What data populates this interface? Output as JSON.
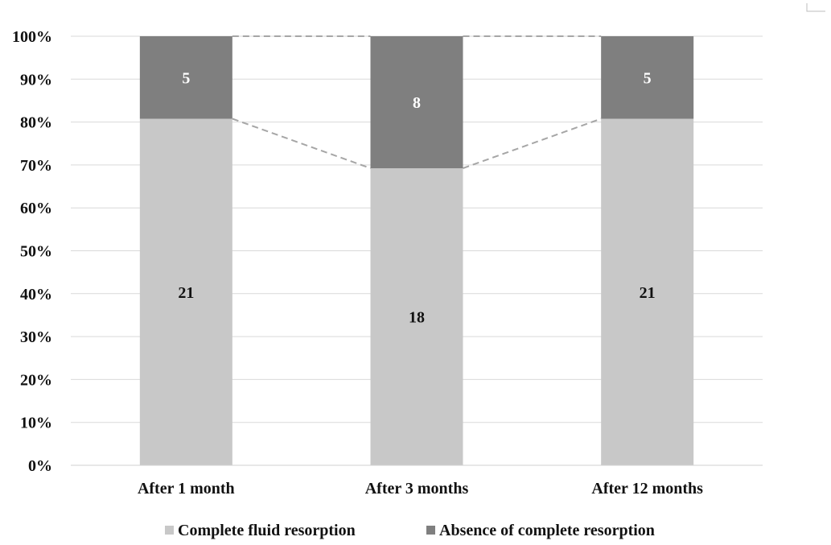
{
  "chart_data": {
    "type": "bar",
    "stacked": true,
    "normalized": true,
    "categories": [
      "After 1 month",
      "After 3 months",
      "After 12 months"
    ],
    "series": [
      {
        "name": "Complete fluid resorption",
        "values": [
          21,
          18,
          21
        ],
        "color": "#c8c8c8"
      },
      {
        "name": "Absence of complete resorption",
        "values": [
          5,
          8,
          5
        ],
        "color": "#7f7f7f"
      }
    ],
    "ylim": [
      0,
      100
    ],
    "yticks": [
      "0%",
      "10%",
      "20%",
      "30%",
      "40%",
      "50%",
      "60%",
      "70%",
      "80%",
      "90%",
      "100%"
    ],
    "grid": true,
    "series_connector_lines": "dashed",
    "legend": "bottom"
  }
}
